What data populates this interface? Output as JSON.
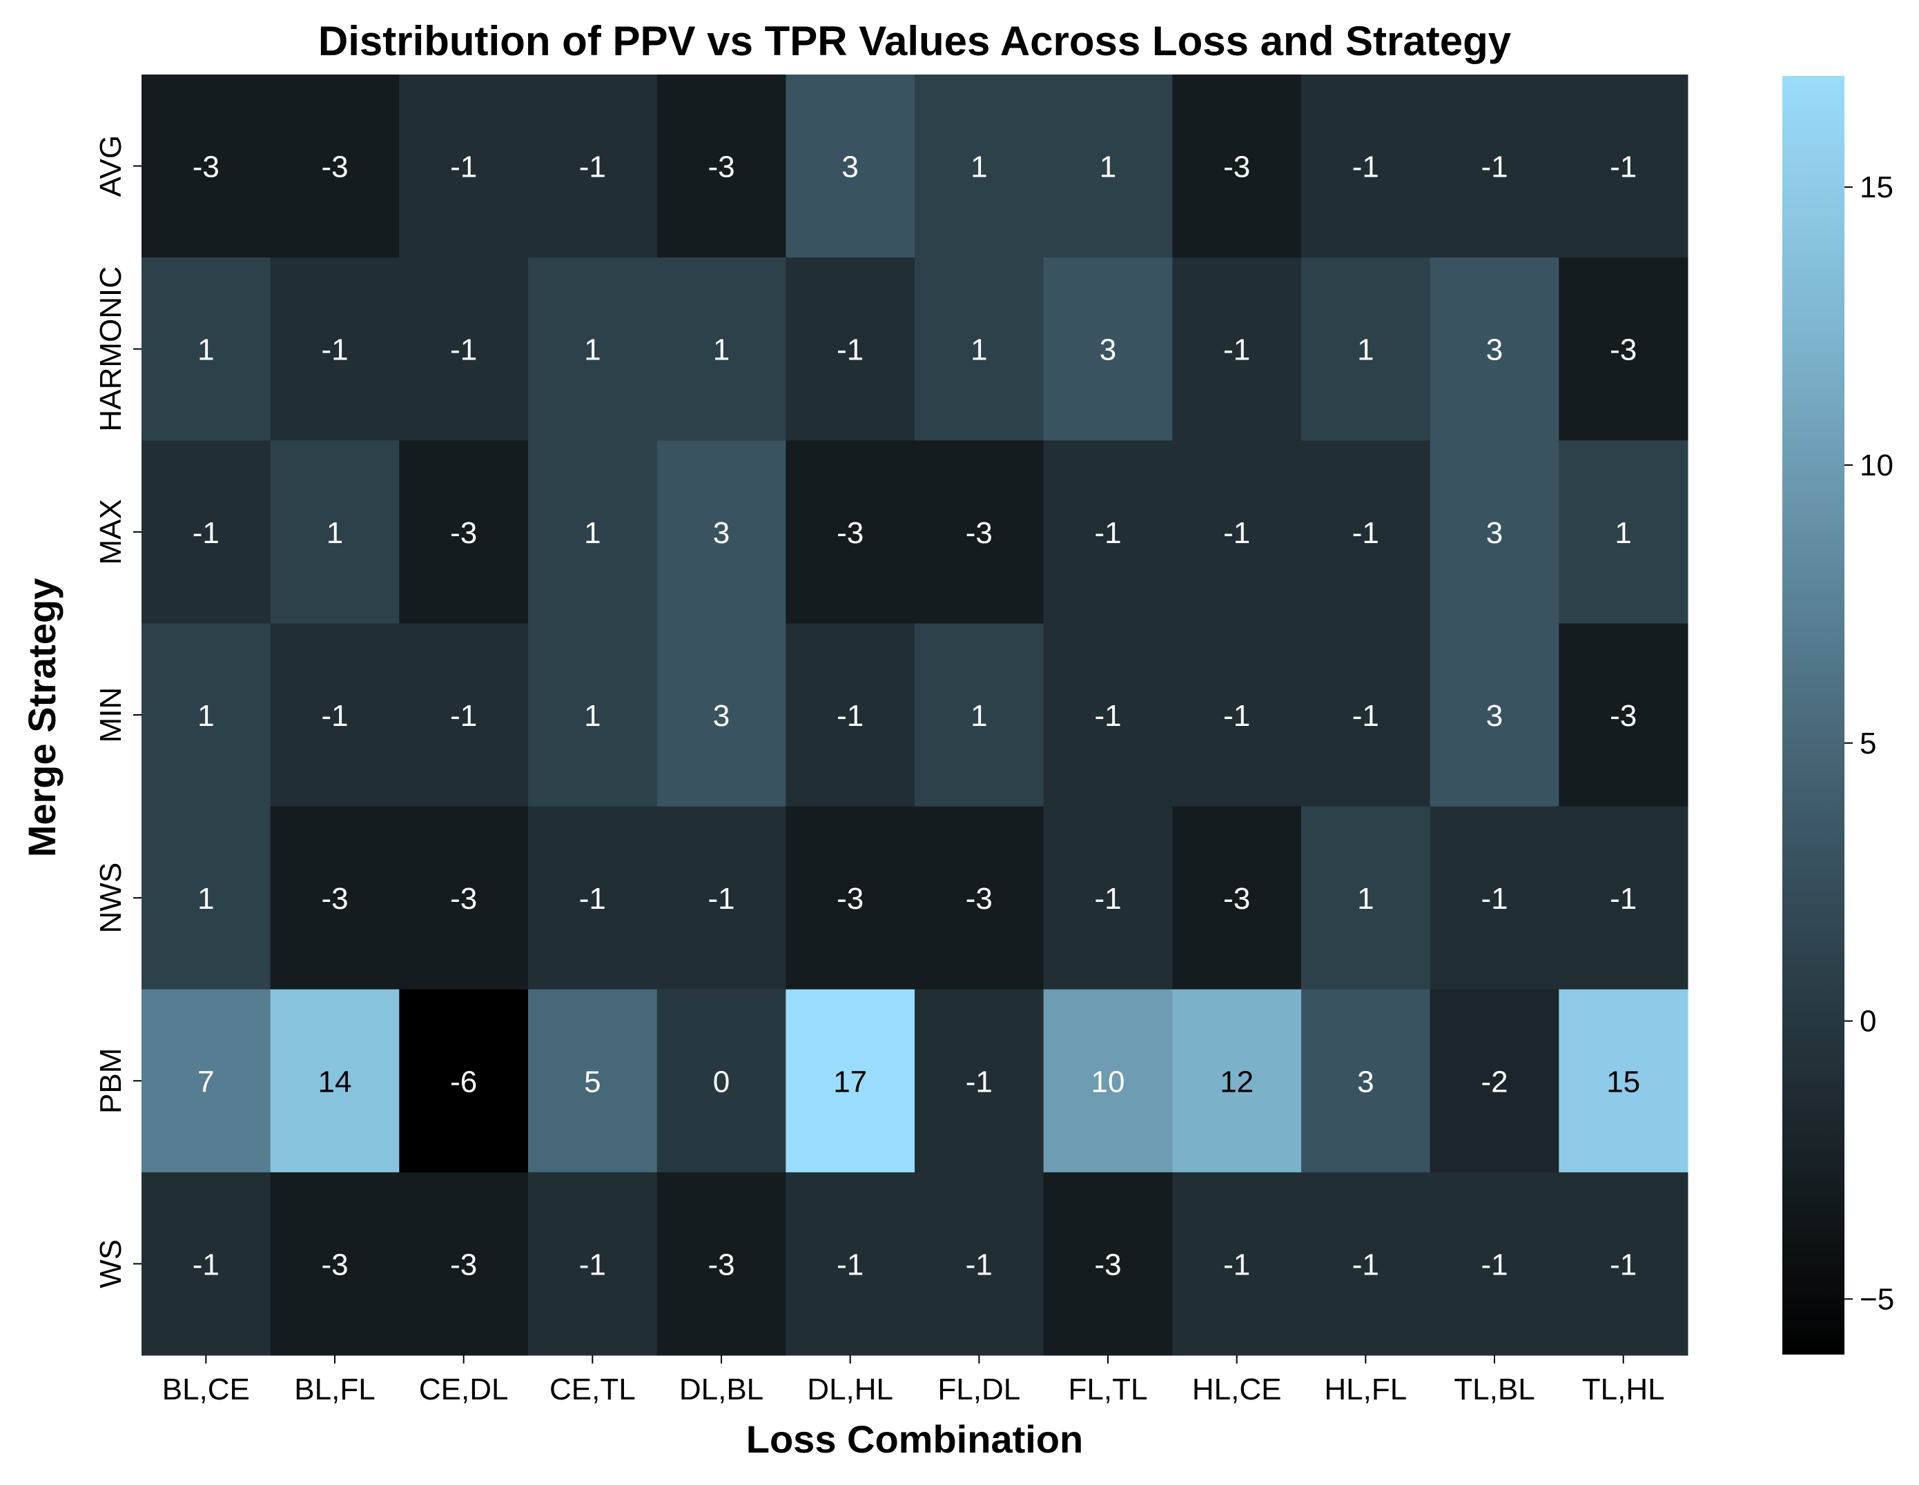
{
  "chart_data": {
    "type": "heatmap",
    "title": "Distribution of PPV vs TPR Values Across Loss and Strategy",
    "xlabel": "Loss Combination",
    "ylabel": "Merge Strategy",
    "x_categories": [
      "BL,CE",
      "BL,FL",
      "CE,DL",
      "CE,TL",
      "DL,BL",
      "DL,HL",
      "FL,DL",
      "FL,TL",
      "HL,CE",
      "HL,FL",
      "TL,BL",
      "TL,HL"
    ],
    "y_categories": [
      "AVG",
      "HARMONIC",
      "MAX",
      "MIN",
      "NWS",
      "PBM",
      "WS"
    ],
    "values": [
      [
        -3,
        -3,
        -1,
        -1,
        -3,
        3,
        1,
        1,
        -3,
        -1,
        -1,
        -1
      ],
      [
        1,
        -1,
        -1,
        1,
        1,
        -1,
        1,
        3,
        -1,
        1,
        3,
        -3
      ],
      [
        -1,
        1,
        -3,
        1,
        3,
        -3,
        -3,
        -1,
        -1,
        -1,
        3,
        1
      ],
      [
        1,
        -1,
        -1,
        1,
        3,
        -1,
        1,
        -1,
        -1,
        -1,
        3,
        -3
      ],
      [
        1,
        -3,
        -3,
        -1,
        -1,
        -3,
        -3,
        -1,
        -3,
        1,
        -1,
        -1
      ],
      [
        7,
        14,
        -6,
        5,
        0,
        17,
        -1,
        10,
        12,
        3,
        -2,
        15
      ],
      [
        -1,
        -3,
        -3,
        -1,
        -3,
        -1,
        -1,
        -3,
        -1,
        -1,
        -1,
        -1
      ]
    ],
    "colorbar": {
      "vmin": -6,
      "vmax": 17,
      "ticks": [
        -5,
        0,
        5,
        10,
        15
      ],
      "tick_labels": [
        "−5",
        "0",
        "5",
        "10",
        "15"
      ],
      "colormap": [
        "#000000",
        "#1f2b31",
        "#3a5563",
        "#5c8599",
        "#7fb5cf",
        "#9adcfb"
      ]
    },
    "annotation_color": "#ffffff",
    "annotation_color_light": "#000000",
    "grid": false
  }
}
